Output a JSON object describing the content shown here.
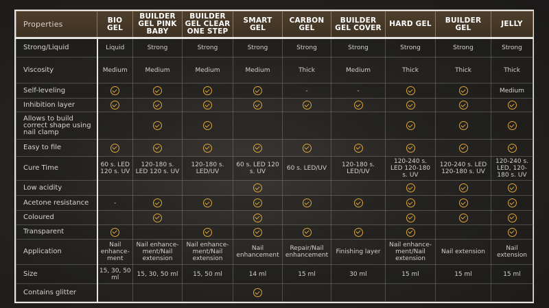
{
  "accent_color": "#e2a838",
  "header": {
    "properties_label": "Properties",
    "columns": [
      "BIO GEL",
      "BUILDER GEL PINK BABY",
      "BUILDER GEL CLEAR ONE STEP",
      "SMART GEL",
      "CARBON GEL",
      "BUILDER GEL COVER",
      "HARD GEL",
      "BUILDER GEL",
      "JELLY"
    ]
  },
  "rows": [
    {
      "label": "Strong/Liquid",
      "cells": [
        "Liquid",
        "Strong",
        "Strong",
        "Strong",
        "Strong",
        "Strong",
        "Strong",
        "Strong",
        "Strong"
      ]
    },
    {
      "label": "Viscosity",
      "cells": [
        "Medium",
        "Medium",
        "Medium",
        "Medium",
        "Thick",
        "Medium",
        "Thick",
        "Thick",
        "Thick"
      ]
    },
    {
      "label": "Self-leveling",
      "cells": [
        "check",
        "check",
        "check",
        "check",
        "-",
        "-",
        "check",
        "check",
        "Medium"
      ]
    },
    {
      "label": "Inhibition layer",
      "cells": [
        "check",
        "check",
        "check",
        "check",
        "check",
        "check",
        "check",
        "check",
        "check"
      ]
    },
    {
      "label": "Allows to build correct shape using nail clamp",
      "cells": [
        "",
        "check",
        "check",
        "",
        "",
        "",
        "check",
        "check",
        "check"
      ]
    },
    {
      "label": "Easy to file",
      "cells": [
        "check",
        "check",
        "check",
        "check",
        "check",
        "check",
        "check",
        "check",
        "check"
      ]
    },
    {
      "label": "Cure Time",
      "cells": [
        "60 s. LED 120 s. UV",
        "120-180 s. LED 120 s. UV",
        "120-180 s. LED/UV",
        "60 s. LED 120 s. UV",
        "60 s. LED/UV",
        "120-180 s. LED/UV",
        "120-240 s. LED 120-180 s. UV",
        "120-240 s. LED 120-180 s. UV",
        "120-240 s. LED, 120-180 s. UV"
      ]
    },
    {
      "label": "Low acidity",
      "cells": [
        "",
        "",
        "",
        "check",
        "",
        "",
        "check",
        "check",
        "check"
      ]
    },
    {
      "label": "Acetone resistance",
      "cells": [
        "-",
        "check",
        "check",
        "check",
        "check",
        "check",
        "check",
        "check",
        "check"
      ]
    },
    {
      "label": "Coloured",
      "cells": [
        "",
        "check",
        "",
        "check",
        "",
        "",
        "check",
        "check",
        "check"
      ]
    },
    {
      "label": "Transparent",
      "cells": [
        "check",
        "",
        "check",
        "check",
        "check",
        "check",
        "check",
        "",
        "check"
      ]
    },
    {
      "label": "Application",
      "cells": [
        "Nail enhance-ment",
        "Nail enhance-ment/Nail extension",
        "Nail enhance-ment/Nail extension",
        "Nail enhancement",
        "Repair/Nail enhancement",
        "Finishing layer",
        "Nail enhance-ment/Nail extension",
        "Nail extension",
        "Nail extension"
      ]
    },
    {
      "label": "Size",
      "cells": [
        "15, 30, 50 ml",
        "15, 30, 50 ml",
        "15, 50 ml",
        "14 ml",
        "15 ml",
        "30 ml",
        "15 ml",
        "15 ml",
        "15 ml"
      ]
    },
    {
      "label": "Contains glitter",
      "cells": [
        "",
        "",
        "",
        "check",
        "",
        "",
        "",
        "",
        ""
      ]
    }
  ]
}
